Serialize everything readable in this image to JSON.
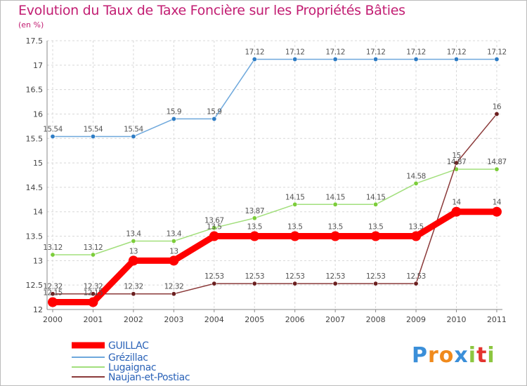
{
  "chart_data": {
    "type": "line",
    "title": "Evolution du Taux de Taxe Foncière sur les Propriétés Bâties",
    "subtitle": "(en %)",
    "categories": [
      "2000",
      "2001",
      "2002",
      "2003",
      "2004",
      "2005",
      "2006",
      "2007",
      "2008",
      "2009",
      "2010",
      "2011"
    ],
    "ylim": [
      12,
      17.5
    ],
    "yticks": [
      "12",
      "12.5",
      "13",
      "13.5",
      "14",
      "14.5",
      "15",
      "15.5",
      "16",
      "16.5",
      "17",
      "17.5"
    ],
    "series": [
      {
        "name": "GUILLAC",
        "color": "#ff0000",
        "marker": "#ff0000",
        "values": [
          12.15,
          12.15,
          13,
          13,
          13.5,
          13.5,
          13.5,
          13.5,
          13.5,
          13.5,
          14,
          14
        ],
        "labels": [
          "12.15",
          "12.15",
          "13",
          "13",
          "13.5",
          "13.5",
          "13.5",
          "13.5",
          "13.5",
          "13.5",
          "14",
          "14"
        ]
      },
      {
        "name": "Grézillac",
        "color": "#6ea8dc",
        "marker": "#2f7dc5",
        "values": [
          15.54,
          15.54,
          15.54,
          15.9,
          15.9,
          17.12,
          17.12,
          17.12,
          17.12,
          17.12,
          17.12,
          17.12
        ],
        "labels": [
          "15.54",
          "15.54",
          "15.54",
          "15.9",
          "15.9",
          "17.12",
          "17.12",
          "17.12",
          "17.12",
          "17.12",
          "17.12",
          "17.12"
        ]
      },
      {
        "name": "Lugaignac",
        "color": "#a2df7c",
        "marker": "#7ccd3a",
        "values": [
          13.12,
          13.12,
          13.4,
          13.4,
          13.67,
          13.87,
          14.15,
          14.15,
          14.15,
          14.58,
          14.87,
          14.87
        ],
        "labels": [
          "13.12",
          "13.12",
          "13.4",
          "13.4",
          "13.67",
          "13.87",
          "14.15",
          "14.15",
          "14.15",
          "14.58",
          "14.87",
          "14.87"
        ]
      },
      {
        "name": "Naujan-et-Postiac",
        "color": "#8b3a3a",
        "marker": "#6b1f1f",
        "values": [
          12.32,
          12.32,
          12.32,
          12.32,
          12.53,
          12.53,
          12.53,
          12.53,
          12.53,
          12.53,
          15,
          16
        ],
        "labels": [
          "12.32",
          "12.32",
          "12.32",
          "12.32",
          "12.53",
          "12.53",
          "12.53",
          "12.53",
          "12.53",
          "12.53",
          "15",
          "16"
        ]
      }
    ],
    "grid": true,
    "legend": "bottom-left"
  },
  "logo": {
    "text": "Proxiti",
    "letters": [
      "P",
      "r",
      "o",
      "x",
      "i",
      "t",
      "i"
    ],
    "colors": [
      "#3b8fd9",
      "#f08a1c",
      "#f08a1c",
      "#3b8fd9",
      "#8cc63f",
      "#e3342f",
      "#8cc63f"
    ]
  }
}
